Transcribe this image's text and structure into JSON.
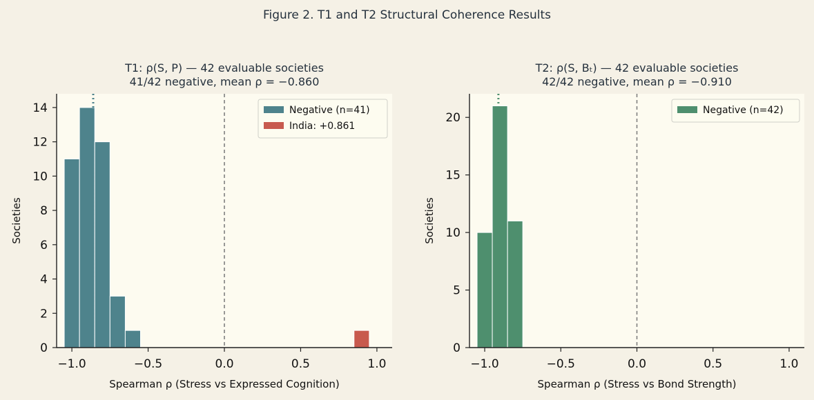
{
  "figure": {
    "title": "Figure 2. T1 and T2 Structural Coherence Results",
    "background": "#f5f1e6",
    "plot_background": "#fdfbf0"
  },
  "chart_data": [
    {
      "type": "bar",
      "panel": "T1",
      "title_lines": [
        "T1: ρ(S, P) — 42 evaluable societies",
        "41/42 negative, mean ρ = −0.860"
      ],
      "xlabel": "Spearman ρ  (Stress vs Expressed Cognition)",
      "ylabel": "Societies",
      "xlim": [
        -1.1,
        1.1
      ],
      "ylim": [
        0,
        14.8
      ],
      "xticks": [
        -1.0,
        -0.5,
        0.0,
        0.5,
        1.0
      ],
      "xtick_labels": [
        "−1.0",
        "−0.5",
        "0.0",
        "0.5",
        "1.0"
      ],
      "yticks": [
        0,
        2,
        4,
        6,
        8,
        10,
        12,
        14
      ],
      "ytick_labels": [
        "0",
        "2",
        "4",
        "6",
        "8",
        "10",
        "12",
        "14"
      ],
      "series": [
        {
          "name": "Negative (n=41)",
          "color": "#4e838c",
          "bins": [
            {
              "x0": -1.05,
              "x1": -0.95,
              "count": 11
            },
            {
              "x0": -0.95,
              "x1": -0.85,
              "count": 14
            },
            {
              "x0": -0.85,
              "x1": -0.75,
              "count": 12
            },
            {
              "x0": -0.75,
              "x1": -0.65,
              "count": 3
            },
            {
              "x0": -0.65,
              "x1": -0.55,
              "count": 1
            }
          ]
        },
        {
          "name": "India: +0.861",
          "color": "#c85a4e",
          "bins": [
            {
              "x0": 0.85,
              "x1": 0.95,
              "count": 1
            }
          ]
        }
      ],
      "mean_line": {
        "x": -0.86,
        "color": "#4e838c",
        "style": "dotted"
      },
      "zero_line": {
        "x": 0.0,
        "color": "#808080",
        "style": "dashed"
      },
      "legend": "top-right"
    },
    {
      "type": "bar",
      "panel": "T2",
      "title_lines": [
        "T2: ρ(S, Bₜ) — 42 evaluable societies",
        "42/42 negative, mean ρ = −0.910"
      ],
      "xlabel": "Spearman ρ  (Stress vs Bond Strength)",
      "ylabel": "Societies",
      "xlim": [
        -1.1,
        1.1
      ],
      "ylim": [
        0,
        22.05
      ],
      "xticks": [
        -1.0,
        -0.5,
        0.0,
        0.5,
        1.0
      ],
      "xtick_labels": [
        "−1.0",
        "−0.5",
        "0.0",
        "0.5",
        "1.0"
      ],
      "yticks": [
        0,
        5,
        10,
        15,
        20
      ],
      "ytick_labels": [
        "0",
        "5",
        "10",
        "15",
        "20"
      ],
      "series": [
        {
          "name": "Negative (n=42)",
          "color": "#4e8f6e",
          "bins": [
            {
              "x0": -1.05,
              "x1": -0.95,
              "count": 10
            },
            {
              "x0": -0.95,
              "x1": -0.85,
              "count": 21
            },
            {
              "x0": -0.85,
              "x1": -0.75,
              "count": 11
            }
          ]
        }
      ],
      "mean_line": {
        "x": -0.91,
        "color": "#4e8f6e",
        "style": "dotted"
      },
      "zero_line": {
        "x": 0.0,
        "color": "#808080",
        "style": "dashed"
      },
      "legend": "top-right"
    }
  ]
}
